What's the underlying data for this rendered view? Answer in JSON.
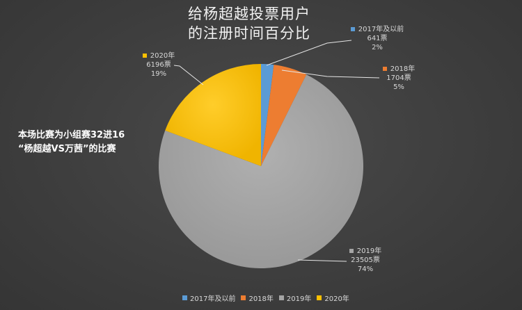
{
  "title_line1": "给杨超越投票用户",
  "title_line2": "的注册时间百分比",
  "note_line1": "本场比赛为小组赛32进16",
  "note_line2": "“杨超越VS万茜”的比赛",
  "slices": [
    {
      "label": "2017年及以前",
      "votes": "641票",
      "pct": "2%",
      "color": "#5b9bd5"
    },
    {
      "label": "2018年",
      "votes": "1704票",
      "pct": "5%",
      "color": "#ed7d31"
    },
    {
      "label": "2019年",
      "votes": "23505票",
      "pct": "74%",
      "color": "#a5a5a5"
    },
    {
      "label": "2020年",
      "votes": "6196票",
      "pct": "19%",
      "color": "#ffc000"
    }
  ],
  "chart_data": {
    "type": "pie",
    "title": "给杨超越投票用户的注册时间百分比",
    "categories": [
      "2017年及以前",
      "2018年",
      "2019年",
      "2020年"
    ],
    "values": [
      641,
      1704,
      23505,
      6196
    ],
    "percentages": [
      2,
      5,
      74,
      19
    ],
    "colors": [
      "#5b9bd5",
      "#ed7d31",
      "#a5a5a5",
      "#ffc000"
    ],
    "legend_position": "bottom",
    "annotation": "本场比赛为小组赛32进16 “杨超越VS万茜”的比赛"
  }
}
